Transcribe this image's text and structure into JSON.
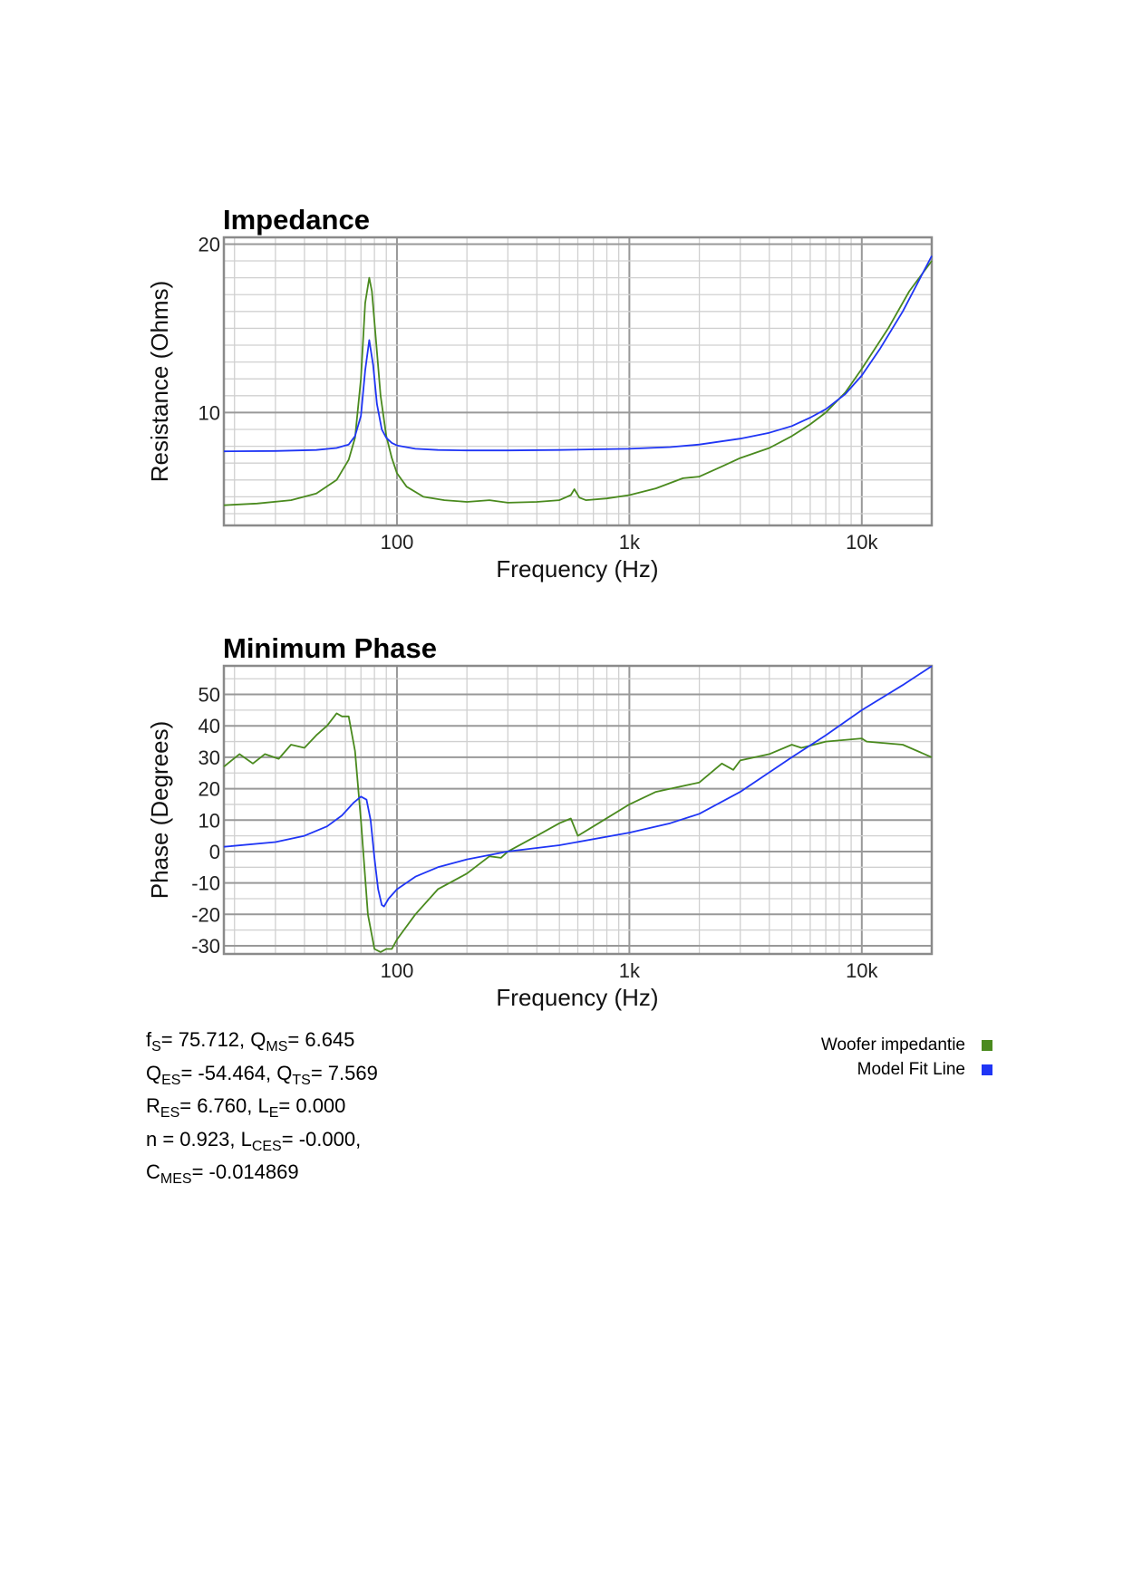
{
  "colors": {
    "measured": "#4a8a1e",
    "model": "#1f35f5",
    "grid_major": "#999999",
    "grid_minor": "#d0d0d0"
  },
  "chart_data": [
    {
      "type": "line",
      "title": "Impedance",
      "xlabel": "Frequency (Hz)",
      "ylabel": "Resistance (Ohms)",
      "xscale": "log",
      "xlim": [
        18,
        20000
      ],
      "ylim": [
        3.3,
        20.4
      ],
      "xticks": [
        {
          "v": 100,
          "label": "100"
        },
        {
          "v": 1000,
          "label": "1k"
        },
        {
          "v": 10000,
          "label": "10k"
        }
      ],
      "yticks": [
        {
          "v": 10,
          "label": "10"
        },
        {
          "v": 20,
          "label": "20"
        }
      ],
      "yminor_step": 1,
      "grid": true,
      "series": [
        {
          "name": "Woofer impedantie",
          "color": "#4a8a1e",
          "x": [
            18,
            25,
            35,
            45,
            55,
            62,
            66,
            70,
            73,
            76,
            78,
            81,
            85,
            90,
            95,
            100,
            110,
            130,
            160,
            200,
            250,
            300,
            400,
            500,
            560,
            580,
            610,
            650,
            800,
            1000,
            1300,
            1700,
            2000,
            2500,
            3000,
            4000,
            5000,
            6000,
            7000,
            8500,
            10000,
            13000,
            16000,
            20000
          ],
          "y": [
            4.5,
            4.6,
            4.8,
            5.2,
            6.0,
            7.2,
            8.5,
            12,
            16.5,
            18.0,
            17.2,
            14.5,
            11.0,
            8.6,
            7.3,
            6.4,
            5.6,
            5.0,
            4.8,
            4.7,
            4.8,
            4.65,
            4.7,
            4.8,
            5.1,
            5.45,
            4.95,
            4.8,
            4.9,
            5.1,
            5.5,
            6.1,
            6.2,
            6.8,
            7.3,
            7.9,
            8.6,
            9.3,
            10.0,
            11.2,
            12.6,
            15.0,
            17.2,
            19.0
          ]
        },
        {
          "name": "Model Fit Line",
          "color": "#1f35f5",
          "x": [
            18,
            30,
            45,
            55,
            62,
            66,
            70,
            73,
            76,
            79,
            82,
            86,
            90,
            95,
            100,
            120,
            150,
            200,
            300,
            500,
            1000,
            1500,
            2000,
            3000,
            4000,
            5000,
            6000,
            7000,
            8500,
            10000,
            12000,
            15000,
            20000
          ],
          "y": [
            7.7,
            7.72,
            7.78,
            7.9,
            8.1,
            8.6,
            9.8,
            12.5,
            14.3,
            12.8,
            10.5,
            9.0,
            8.5,
            8.2,
            8.05,
            7.85,
            7.78,
            7.75,
            7.75,
            7.78,
            7.85,
            7.95,
            8.1,
            8.45,
            8.8,
            9.2,
            9.7,
            10.2,
            11.1,
            12.2,
            13.8,
            16.0,
            19.3
          ]
        }
      ]
    },
    {
      "type": "line",
      "title": "Minimum Phase",
      "xlabel": "Frequency (Hz)",
      "ylabel": "Phase (Degrees)",
      "xscale": "log",
      "xlim": [
        18,
        20000
      ],
      "ylim": [
        -32.6,
        59.1
      ],
      "xticks": [
        {
          "v": 100,
          "label": "100"
        },
        {
          "v": 1000,
          "label": "1k"
        },
        {
          "v": 10000,
          "label": "10k"
        }
      ],
      "yticks": [
        {
          "v": -30,
          "label": "-30"
        },
        {
          "v": -20,
          "label": "-20"
        },
        {
          "v": -10,
          "label": "-10"
        },
        {
          "v": 0,
          "label": "0"
        },
        {
          "v": 10,
          "label": "10"
        },
        {
          "v": 20,
          "label": "20"
        },
        {
          "v": 30,
          "label": "30"
        },
        {
          "v": 40,
          "label": "40"
        },
        {
          "v": 50,
          "label": "50"
        }
      ],
      "yminor_step": 5,
      "grid": true,
      "series": [
        {
          "name": "Woofer impedantie",
          "color": "#4a8a1e",
          "x": [
            18,
            21,
            24,
            27,
            31,
            35,
            40,
            45,
            50,
            55,
            58,
            62,
            66,
            70,
            75,
            80,
            85,
            90,
            95,
            100,
            120,
            150,
            200,
            250,
            280,
            300,
            400,
            500,
            560,
            600,
            700,
            1000,
            1300,
            1500,
            2000,
            2500,
            2800,
            3000,
            4000,
            5000,
            5500,
            7000,
            10000,
            10500,
            15000,
            20000
          ],
          "y": [
            27,
            31,
            28,
            31,
            29.5,
            34,
            33,
            37,
            40,
            44,
            43,
            43,
            32,
            10,
            -20,
            -31,
            -32,
            -31,
            -31,
            -28,
            -20,
            -12,
            -7,
            -1.5,
            -2,
            0,
            5,
            9,
            10.5,
            5,
            8,
            15,
            19,
            20,
            22,
            28,
            26,
            29,
            31,
            34,
            33,
            35,
            36,
            35,
            34,
            30
          ]
        },
        {
          "name": "Model Fit Line",
          "color": "#1f35f5",
          "x": [
            18,
            30,
            40,
            50,
            58,
            65,
            70,
            74,
            77,
            80,
            83,
            86,
            88,
            92,
            100,
            120,
            150,
            200,
            300,
            500,
            1000,
            1500,
            2000,
            3000,
            5000,
            7000,
            10000,
            15000,
            20000
          ],
          "y": [
            1.5,
            3,
            5,
            8,
            11.5,
            15.5,
            17.5,
            16.5,
            10,
            -2,
            -12,
            -17,
            -17.5,
            -15,
            -12,
            -8,
            -5,
            -2.5,
            0,
            2,
            6,
            9,
            12,
            19,
            30,
            37,
            45,
            53,
            59
          ]
        }
      ]
    }
  ],
  "parameters": [
    [
      {
        "t": "f"
      },
      {
        "s": "S"
      },
      {
        "t": "= 75.712, Q"
      },
      {
        "s": "MS"
      },
      {
        "t": "= 6.645"
      }
    ],
    [
      {
        "t": "Q"
      },
      {
        "s": "ES"
      },
      {
        "t": "= -54.464, Q"
      },
      {
        "s": "TS"
      },
      {
        "t": "= 7.569"
      }
    ],
    [
      {
        "t": "R"
      },
      {
        "s": "ES"
      },
      {
        "t": "= 6.760, L"
      },
      {
        "s": "E"
      },
      {
        "t": "= 0.000"
      }
    ],
    [
      {
        "t": "n = 0.923, L"
      },
      {
        "s": "CES"
      },
      {
        "t": "= -0.000,"
      }
    ],
    [
      {
        "t": "C"
      },
      {
        "s": "MES"
      },
      {
        "t": "= -0.014869"
      }
    ]
  ],
  "legend": [
    {
      "label": "Woofer impedantie",
      "color": "#4a8a1e"
    },
    {
      "label": "Model Fit Line",
      "color": "#1f35f5"
    }
  ]
}
